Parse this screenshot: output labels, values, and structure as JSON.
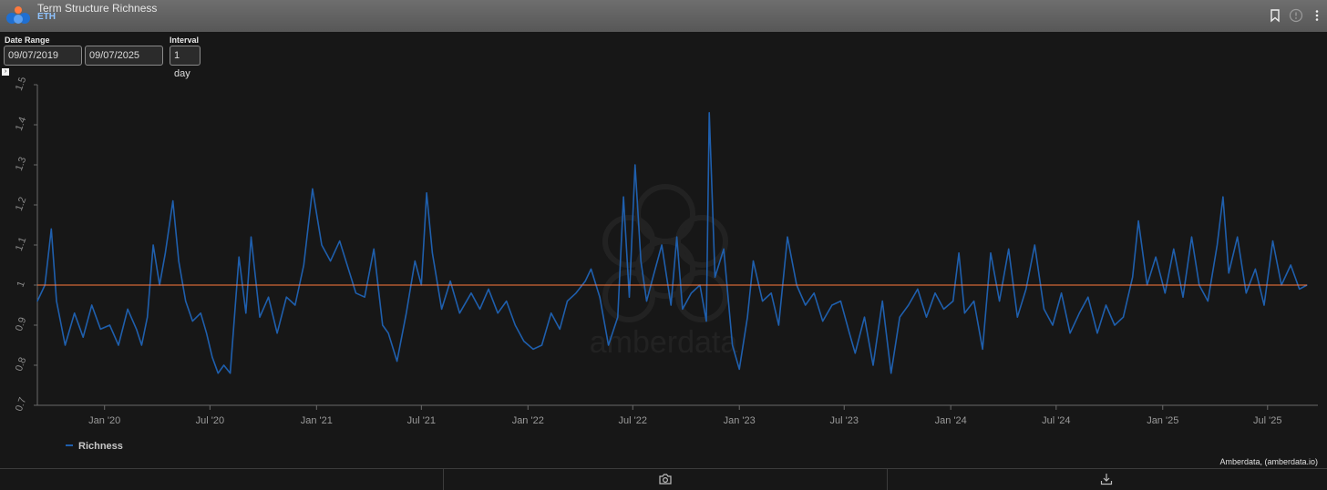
{
  "header": {
    "title": "Term Structure Richness",
    "subtitle": "ETH"
  },
  "controls": {
    "date_range_label": "Date Range",
    "start_date": "09/07/2019",
    "end_date": "09/07/2025",
    "interval_label": "Interval",
    "interval_value": "1 day"
  },
  "credit": "Amberdata, (amberdata.io)",
  "colors": {
    "series": "#1f5fad",
    "reference": "#ff7a3d",
    "background": "#171717",
    "grid": "#3a3a3a"
  },
  "chart_data": {
    "type": "line",
    "title": "",
    "xlabel": "",
    "ylabel": "",
    "ylim": [
      0.7,
      1.5
    ],
    "yticks": [
      "0.7",
      "0.8",
      "0.9",
      "1",
      "1.1",
      "1.2",
      "1.3",
      "1.4",
      "1.5"
    ],
    "xticks": [
      "Jan '20",
      "Jul '20",
      "Jan '21",
      "Jul '21",
      "Jan '22",
      "Jul '22",
      "Jan '23",
      "Jul '23",
      "Jan '24",
      "Jul '24",
      "Jan '25",
      "Jul '25"
    ],
    "xtick_dates": [
      "2020-01-01",
      "2020-07-01",
      "2021-01-01",
      "2021-07-01",
      "2022-01-01",
      "2022-07-01",
      "2023-01-01",
      "2023-07-01",
      "2024-01-01",
      "2024-07-01",
      "2025-01-01",
      "2025-07-01"
    ],
    "reference_line": 1.0,
    "legend_position": "bottom-left",
    "grid": false,
    "watermark": "amberdata",
    "series": [
      {
        "name": "Richness",
        "points": [
          [
            "2019-09-07",
            0.96
          ],
          [
            "2019-09-20",
            1.0
          ],
          [
            "2019-10-01",
            1.14
          ],
          [
            "2019-10-10",
            0.96
          ],
          [
            "2019-10-25",
            0.85
          ],
          [
            "2019-11-10",
            0.93
          ],
          [
            "2019-11-25",
            0.87
          ],
          [
            "2019-12-10",
            0.95
          ],
          [
            "2019-12-25",
            0.89
          ],
          [
            "2020-01-10",
            0.9
          ],
          [
            "2020-01-25",
            0.85
          ],
          [
            "2020-02-10",
            0.94
          ],
          [
            "2020-02-25",
            0.89
          ],
          [
            "2020-03-05",
            0.85
          ],
          [
            "2020-03-15",
            0.92
          ],
          [
            "2020-03-25",
            1.1
          ],
          [
            "2020-04-05",
            1.0
          ],
          [
            "2020-04-15",
            1.08
          ],
          [
            "2020-04-28",
            1.21
          ],
          [
            "2020-05-08",
            1.06
          ],
          [
            "2020-05-20",
            0.96
          ],
          [
            "2020-06-01",
            0.91
          ],
          [
            "2020-06-15",
            0.93
          ],
          [
            "2020-06-25",
            0.88
          ],
          [
            "2020-07-05",
            0.82
          ],
          [
            "2020-07-15",
            0.78
          ],
          [
            "2020-07-25",
            0.8
          ],
          [
            "2020-08-05",
            0.78
          ],
          [
            "2020-08-20",
            1.07
          ],
          [
            "2020-09-01",
            0.93
          ],
          [
            "2020-09-10",
            1.12
          ],
          [
            "2020-09-25",
            0.92
          ],
          [
            "2020-10-10",
            0.97
          ],
          [
            "2020-10-25",
            0.88
          ],
          [
            "2020-11-10",
            0.97
          ],
          [
            "2020-11-25",
            0.95
          ],
          [
            "2020-12-10",
            1.05
          ],
          [
            "2020-12-25",
            1.24
          ],
          [
            "2021-01-10",
            1.1
          ],
          [
            "2021-01-25",
            1.06
          ],
          [
            "2021-02-10",
            1.11
          ],
          [
            "2021-02-25",
            1.04
          ],
          [
            "2021-03-10",
            0.98
          ],
          [
            "2021-03-25",
            0.97
          ],
          [
            "2021-04-10",
            1.09
          ],
          [
            "2021-04-25",
            0.9
          ],
          [
            "2021-05-05",
            0.88
          ],
          [
            "2021-05-20",
            0.81
          ],
          [
            "2021-06-05",
            0.93
          ],
          [
            "2021-06-20",
            1.06
          ],
          [
            "2021-07-01",
            1.0
          ],
          [
            "2021-07-10",
            1.23
          ],
          [
            "2021-07-20",
            1.08
          ],
          [
            "2021-08-05",
            0.94
          ],
          [
            "2021-08-20",
            1.01
          ],
          [
            "2021-09-05",
            0.93
          ],
          [
            "2021-09-25",
            0.98
          ],
          [
            "2021-10-10",
            0.94
          ],
          [
            "2021-10-25",
            0.99
          ],
          [
            "2021-11-10",
            0.93
          ],
          [
            "2021-11-25",
            0.96
          ],
          [
            "2021-12-10",
            0.9
          ],
          [
            "2021-12-25",
            0.86
          ],
          [
            "2022-01-10",
            0.84
          ],
          [
            "2022-01-25",
            0.85
          ],
          [
            "2022-02-10",
            0.93
          ],
          [
            "2022-02-25",
            0.89
          ],
          [
            "2022-03-10",
            0.96
          ],
          [
            "2022-03-25",
            0.98
          ],
          [
            "2022-04-10",
            1.01
          ],
          [
            "2022-04-20",
            1.04
          ],
          [
            "2022-05-05",
            0.97
          ],
          [
            "2022-05-20",
            0.85
          ],
          [
            "2022-06-05",
            0.92
          ],
          [
            "2022-06-15",
            1.22
          ],
          [
            "2022-06-25",
            0.97
          ],
          [
            "2022-07-05",
            1.3
          ],
          [
            "2022-07-15",
            1.06
          ],
          [
            "2022-07-25",
            0.96
          ],
          [
            "2022-08-05",
            1.02
          ],
          [
            "2022-08-20",
            1.1
          ],
          [
            "2022-09-05",
            0.95
          ],
          [
            "2022-09-15",
            1.12
          ],
          [
            "2022-09-25",
            0.94
          ],
          [
            "2022-10-10",
            0.98
          ],
          [
            "2022-10-25",
            1.0
          ],
          [
            "2022-11-05",
            0.91
          ],
          [
            "2022-11-10",
            1.43
          ],
          [
            "2022-11-20",
            1.02
          ],
          [
            "2022-12-05",
            1.09
          ],
          [
            "2022-12-20",
            0.85
          ],
          [
            "2023-01-01",
            0.79
          ],
          [
            "2023-01-15",
            0.92
          ],
          [
            "2023-01-25",
            1.06
          ],
          [
            "2023-02-10",
            0.96
          ],
          [
            "2023-02-25",
            0.98
          ],
          [
            "2023-03-10",
            0.9
          ],
          [
            "2023-03-25",
            1.12
          ],
          [
            "2023-04-10",
            1.0
          ],
          [
            "2023-04-25",
            0.95
          ],
          [
            "2023-05-10",
            0.98
          ],
          [
            "2023-05-25",
            0.91
          ],
          [
            "2023-06-10",
            0.95
          ],
          [
            "2023-06-25",
            0.96
          ],
          [
            "2023-07-10",
            0.88
          ],
          [
            "2023-07-20",
            0.83
          ],
          [
            "2023-08-05",
            0.92
          ],
          [
            "2023-08-20",
            0.8
          ],
          [
            "2023-09-05",
            0.96
          ],
          [
            "2023-09-20",
            0.78
          ],
          [
            "2023-10-05",
            0.92
          ],
          [
            "2023-10-20",
            0.95
          ],
          [
            "2023-11-05",
            0.99
          ],
          [
            "2023-11-20",
            0.92
          ],
          [
            "2023-12-05",
            0.98
          ],
          [
            "2023-12-20",
            0.94
          ],
          [
            "2024-01-05",
            0.96
          ],
          [
            "2024-01-15",
            1.08
          ],
          [
            "2024-01-25",
            0.93
          ],
          [
            "2024-02-10",
            0.96
          ],
          [
            "2024-02-25",
            0.84
          ],
          [
            "2024-03-10",
            1.08
          ],
          [
            "2024-03-25",
            0.96
          ],
          [
            "2024-04-10",
            1.09
          ],
          [
            "2024-04-25",
            0.92
          ],
          [
            "2024-05-10",
            0.99
          ],
          [
            "2024-05-25",
            1.1
          ],
          [
            "2024-06-10",
            0.94
          ],
          [
            "2024-06-25",
            0.9
          ],
          [
            "2024-07-10",
            0.98
          ],
          [
            "2024-07-25",
            0.88
          ],
          [
            "2024-08-10",
            0.93
          ],
          [
            "2024-08-25",
            0.97
          ],
          [
            "2024-09-10",
            0.88
          ],
          [
            "2024-09-25",
            0.95
          ],
          [
            "2024-10-10",
            0.9
          ],
          [
            "2024-10-25",
            0.92
          ],
          [
            "2024-11-10",
            1.02
          ],
          [
            "2024-11-20",
            1.16
          ],
          [
            "2024-12-05",
            1.0
          ],
          [
            "2024-12-20",
            1.07
          ],
          [
            "2025-01-05",
            0.98
          ],
          [
            "2025-01-20",
            1.09
          ],
          [
            "2025-02-05",
            0.97
          ],
          [
            "2025-02-20",
            1.12
          ],
          [
            "2025-03-05",
            1.0
          ],
          [
            "2025-03-20",
            0.96
          ],
          [
            "2025-04-05",
            1.1
          ],
          [
            "2025-04-15",
            1.22
          ],
          [
            "2025-04-25",
            1.03
          ],
          [
            "2025-05-10",
            1.12
          ],
          [
            "2025-05-25",
            0.98
          ],
          [
            "2025-06-10",
            1.04
          ],
          [
            "2025-06-25",
            0.95
          ],
          [
            "2025-07-10",
            1.11
          ],
          [
            "2025-07-25",
            1.0
          ],
          [
            "2025-08-10",
            1.05
          ],
          [
            "2025-08-25",
            0.99
          ],
          [
            "2025-09-07",
            1.0
          ]
        ]
      }
    ]
  }
}
